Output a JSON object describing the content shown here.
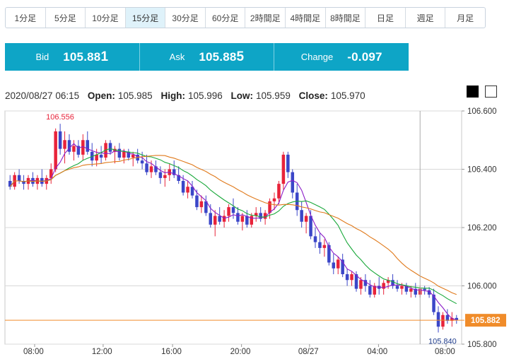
{
  "tabs": [
    {
      "label": "1分足",
      "active": false
    },
    {
      "label": "5分足",
      "active": false
    },
    {
      "label": "10分足",
      "active": false
    },
    {
      "label": "15分足",
      "active": true
    },
    {
      "label": "30分足",
      "active": false
    },
    {
      "label": "60分足",
      "active": false
    },
    {
      "label": "2時間足",
      "active": false
    },
    {
      "label": "4時間足",
      "active": false
    },
    {
      "label": "8時間足",
      "active": false
    },
    {
      "label": "日足",
      "active": false
    },
    {
      "label": "週足",
      "active": false
    },
    {
      "label": "月足",
      "active": false
    }
  ],
  "quote": {
    "bid_label": "Bid",
    "bid_main": "105.88",
    "bid_last": "1",
    "ask_label": "Ask",
    "ask_main": "105.88",
    "ask_last": "5",
    "change_label": "Change",
    "change_value": "-0.097"
  },
  "ohlc": {
    "datetime": "2020/08/27 06:15",
    "open_label": "Open:",
    "open": "105.985",
    "high_label": "High:",
    "high": "105.996",
    "low_label": "Low:",
    "low": "105.959",
    "close_label": "Close:",
    "close": "105.970"
  },
  "theme_swatches": [
    "black",
    "white"
  ],
  "colors": {
    "accent": "#0ea5c6",
    "up_candle": "#e8233a",
    "down_candle": "#3b46c8",
    "ma_fast": "#8b1dc8",
    "ma_mid": "#19a83a",
    "ma_slow": "#e07a1c",
    "price_line": "#f08c2a"
  },
  "chart_data": {
    "type": "candlestick",
    "ylim": [
      105.8,
      106.6
    ],
    "yticks": [
      "106.600",
      "106.400",
      "106.200",
      "106.000",
      "105.800"
    ],
    "xticks": [
      "08:00",
      "12:00",
      "16:00",
      "20:00",
      "08/27",
      "04:00",
      "08:00"
    ],
    "current_price_label": "105.882",
    "high_annotation": "106.556",
    "low_annotation": "105.840",
    "current_price": 105.882,
    "high_price": 106.556,
    "low_price": 105.84,
    "candles_ohlc": [
      [
        106.36,
        106.38,
        106.33,
        106.34
      ],
      [
        106.34,
        106.39,
        106.33,
        106.38
      ],
      [
        106.38,
        106.4,
        106.35,
        106.36
      ],
      [
        106.36,
        106.38,
        106.33,
        106.35
      ],
      [
        106.35,
        106.38,
        106.33,
        106.37
      ],
      [
        106.37,
        106.39,
        106.34,
        106.35
      ],
      [
        106.35,
        106.38,
        106.33,
        106.37
      ],
      [
        106.37,
        106.4,
        106.34,
        106.35
      ],
      [
        106.35,
        106.38,
        106.33,
        106.37
      ],
      [
        106.37,
        106.42,
        106.35,
        106.4
      ],
      [
        106.4,
        106.54,
        106.39,
        106.53
      ],
      [
        106.53,
        106.556,
        106.45,
        106.47
      ],
      [
        106.47,
        106.53,
        106.42,
        106.5
      ],
      [
        106.5,
        106.52,
        106.45,
        106.46
      ],
      [
        106.46,
        106.5,
        106.43,
        106.48
      ],
      [
        106.48,
        106.5,
        106.44,
        106.45
      ],
      [
        106.45,
        106.52,
        106.43,
        106.5
      ],
      [
        106.5,
        106.53,
        106.45,
        106.46
      ],
      [
        106.46,
        106.49,
        106.41,
        106.43
      ],
      [
        106.43,
        106.47,
        106.41,
        106.45
      ],
      [
        106.45,
        106.48,
        106.42,
        106.44
      ],
      [
        106.44,
        106.5,
        106.43,
        106.49
      ],
      [
        106.49,
        106.5,
        106.45,
        106.46
      ],
      [
        106.46,
        106.48,
        106.42,
        106.47
      ],
      [
        106.47,
        106.49,
        106.43,
        106.44
      ],
      [
        106.44,
        106.47,
        106.42,
        106.46
      ],
      [
        106.46,
        106.47,
        106.43,
        106.44
      ],
      [
        106.44,
        106.46,
        106.41,
        106.45
      ],
      [
        106.45,
        106.47,
        106.42,
        106.43
      ],
      [
        106.43,
        106.46,
        106.4,
        106.42
      ],
      [
        106.42,
        106.45,
        106.38,
        106.39
      ],
      [
        106.39,
        106.43,
        106.37,
        106.41
      ],
      [
        106.41,
        106.43,
        106.38,
        106.39
      ],
      [
        106.39,
        106.41,
        106.35,
        106.37
      ],
      [
        106.37,
        106.4,
        106.34,
        106.38
      ],
      [
        106.38,
        106.42,
        106.36,
        106.4
      ],
      [
        106.4,
        106.43,
        106.37,
        106.38
      ],
      [
        106.38,
        106.41,
        106.35,
        106.36
      ],
      [
        106.36,
        106.38,
        106.31,
        106.32
      ],
      [
        106.32,
        106.36,
        106.3,
        106.34
      ],
      [
        106.34,
        106.36,
        106.3,
        106.31
      ],
      [
        106.31,
        106.33,
        106.26,
        106.27
      ],
      [
        106.27,
        106.31,
        106.25,
        106.29
      ],
      [
        106.29,
        106.31,
        106.24,
        106.25
      ],
      [
        106.25,
        106.28,
        106.2,
        106.21
      ],
      [
        106.21,
        106.26,
        106.17,
        106.24
      ],
      [
        106.24,
        106.27,
        106.21,
        106.22
      ],
      [
        106.22,
        106.26,
        106.2,
        106.24
      ],
      [
        106.24,
        106.28,
        106.22,
        106.27
      ],
      [
        106.27,
        106.3,
        106.23,
        106.25
      ],
      [
        106.25,
        106.27,
        106.21,
        106.22
      ],
      [
        106.22,
        106.25,
        106.19,
        106.24
      ],
      [
        106.24,
        106.26,
        106.2,
        106.21
      ],
      [
        106.21,
        106.25,
        106.2,
        106.24
      ],
      [
        106.24,
        106.27,
        106.22,
        106.25
      ],
      [
        106.25,
        106.27,
        106.22,
        106.23
      ],
      [
        106.23,
        106.26,
        106.21,
        106.25
      ],
      [
        106.25,
        106.3,
        106.23,
        106.29
      ],
      [
        106.29,
        106.32,
        106.26,
        106.3
      ],
      [
        106.3,
        106.36,
        106.28,
        106.35
      ],
      [
        106.35,
        106.46,
        106.33,
        106.45
      ],
      [
        106.45,
        106.46,
        106.37,
        106.39
      ],
      [
        106.39,
        106.4,
        106.3,
        106.32
      ],
      [
        106.32,
        106.35,
        106.24,
        106.26
      ],
      [
        106.26,
        106.29,
        106.2,
        106.22
      ],
      [
        106.22,
        106.25,
        106.18,
        106.24
      ],
      [
        106.24,
        106.26,
        106.16,
        106.17
      ],
      [
        106.17,
        106.2,
        106.13,
        106.15
      ],
      [
        106.15,
        106.18,
        106.11,
        106.13
      ],
      [
        106.13,
        106.16,
        106.1,
        106.14
      ],
      [
        106.14,
        106.15,
        106.07,
        106.08
      ],
      [
        106.08,
        106.11,
        106.04,
        106.06
      ],
      [
        106.06,
        106.1,
        106.04,
        106.09
      ],
      [
        106.09,
        106.11,
        106.03,
        106.04
      ],
      [
        106.04,
        106.06,
        106.0,
        106.02
      ],
      [
        106.02,
        106.05,
        106.0,
        106.04
      ],
      [
        106.04,
        106.05,
        105.98,
        105.99
      ],
      [
        105.99,
        106.03,
        105.97,
        106.02
      ],
      [
        106.02,
        106.04,
        105.98,
        106.0
      ],
      [
        106.0,
        106.02,
        105.96,
        105.97
      ],
      [
        105.97,
        106.01,
        105.96,
        106.0
      ],
      [
        106.0,
        106.03,
        105.97,
        105.99
      ],
      [
        105.99,
        106.02,
        105.97,
        106.01
      ],
      [
        106.01,
        106.03,
        105.99,
        106.02
      ],
      [
        106.02,
        106.04,
        105.99,
        106.0
      ],
      [
        106.0,
        106.02,
        105.98,
        105.99
      ],
      [
        105.99,
        106.01,
        105.97,
        106.0
      ],
      [
        106.0,
        106.01,
        105.97,
        105.98
      ],
      [
        105.98,
        106.0,
        105.96,
        105.99
      ],
      [
        105.99,
        106.01,
        105.96,
        105.97
      ],
      [
        105.97,
        106.0,
        105.96,
        105.99
      ],
      [
        105.99,
        106.0,
        105.97,
        105.985
      ],
      [
        105.985,
        105.996,
        105.959,
        105.97
      ],
      [
        105.97,
        105.99,
        105.9,
        105.91
      ],
      [
        105.91,
        105.93,
        105.84,
        105.86
      ],
      [
        105.86,
        105.91,
        105.85,
        105.9
      ],
      [
        105.9,
        105.92,
        105.87,
        105.88
      ],
      [
        105.88,
        105.91,
        105.86,
        105.89
      ],
      [
        105.89,
        105.9,
        105.87,
        105.882
      ]
    ]
  }
}
